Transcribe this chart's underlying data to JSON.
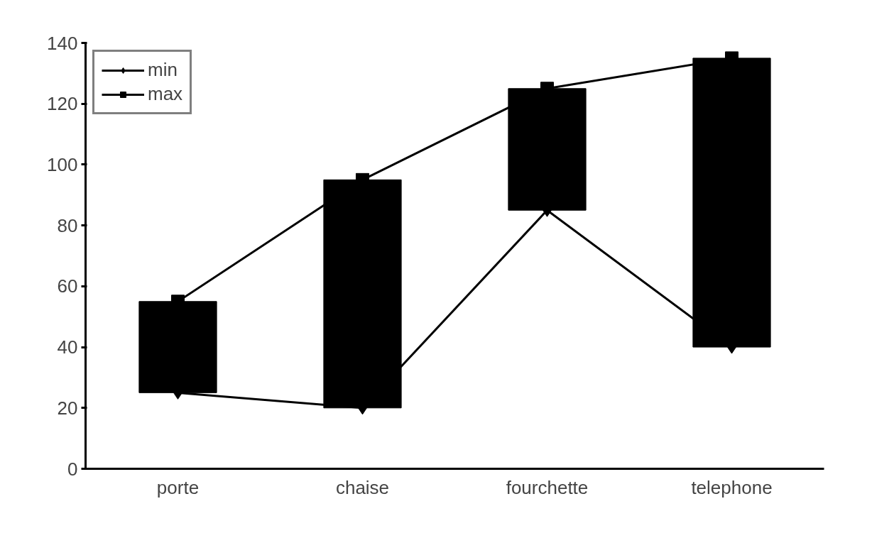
{
  "chart_data": {
    "type": "line",
    "categories": [
      "porte",
      "chaise",
      "fourchette",
      "telephone"
    ],
    "series": [
      {
        "name": "min",
        "color": "#000000",
        "values": [
          25,
          20,
          85,
          40
        ],
        "marker": "diamond"
      },
      {
        "name": "max",
        "color": "#000000",
        "values": [
          55,
          95,
          125,
          135
        ],
        "marker": "square"
      },
      {
        "type": "bar",
        "color": "#000000",
        "base": [
          25,
          20,
          85,
          40
        ],
        "values": [
          30,
          75,
          40,
          95
        ]
      }
    ],
    "ylim": [
      0,
      140
    ],
    "yticks": [
      0,
      20,
      40,
      60,
      80,
      100,
      120,
      140
    ],
    "grid": false,
    "legend": "top left",
    "line_style": "solid"
  }
}
